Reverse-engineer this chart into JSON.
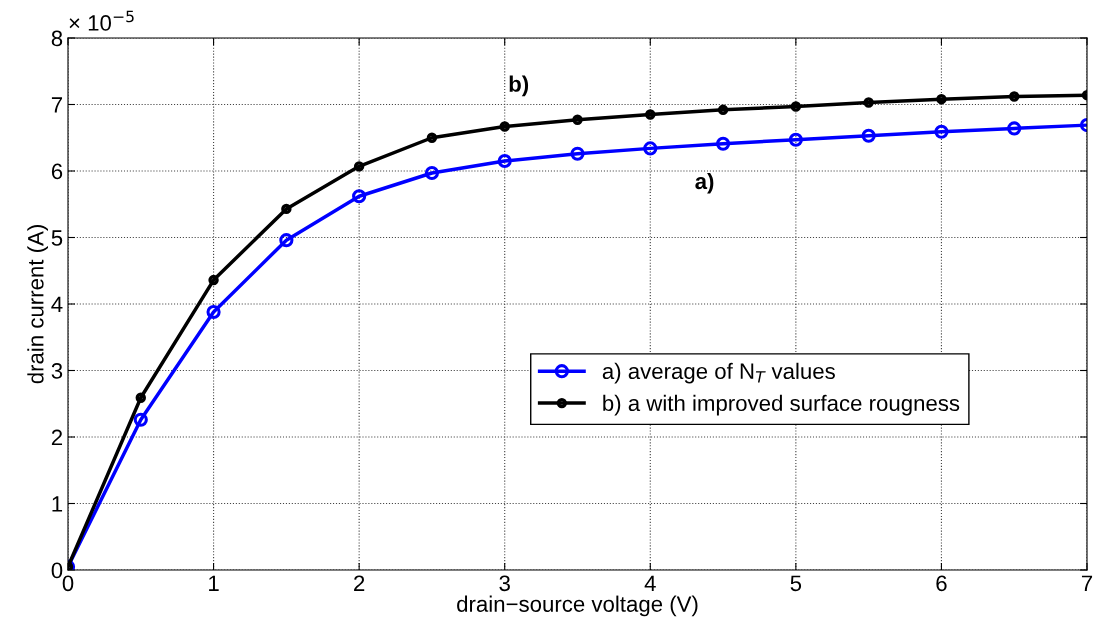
{
  "chart_data": {
    "type": "line",
    "xlabel": "drain−source voltage (V)",
    "ylabel": "drain current (A)",
    "x": [
      0,
      0.5,
      1,
      1.5,
      2,
      2.5,
      3,
      3.5,
      4,
      4.5,
      5,
      5.5,
      6,
      6.5,
      7
    ],
    "series": [
      {
        "name": "a) average of N$_{T}$ values",
        "color": "#0000ff",
        "marker": "circle",
        "values": [
          0.05,
          2.26,
          3.88,
          4.96,
          5.62,
          5.97,
          6.15,
          6.26,
          6.34,
          6.41,
          6.47,
          6.53,
          6.59,
          6.64,
          6.69
        ]
      },
      {
        "name": "b) a with improved surface rougness",
        "color": "#000000",
        "marker": "circle",
        "values": [
          0.05,
          2.59,
          4.36,
          5.43,
          6.07,
          6.5,
          6.67,
          6.77,
          6.85,
          6.92,
          6.97,
          7.03,
          7.08,
          7.12,
          7.14
        ]
      }
    ],
    "xlim": [
      0,
      7
    ],
    "xticks": [
      0,
      1,
      2,
      3,
      4,
      5,
      6,
      7
    ],
    "ylim": [
      0,
      8
    ],
    "yticks": [
      0,
      1,
      2,
      3,
      4,
      5,
      6,
      7,
      8
    ],
    "annotations": [
      "× 10$^{−5}$",
      "b)",
      "a)"
    ],
    "grid": true,
    "legend": "right",
    "line_style": "solid"
  }
}
